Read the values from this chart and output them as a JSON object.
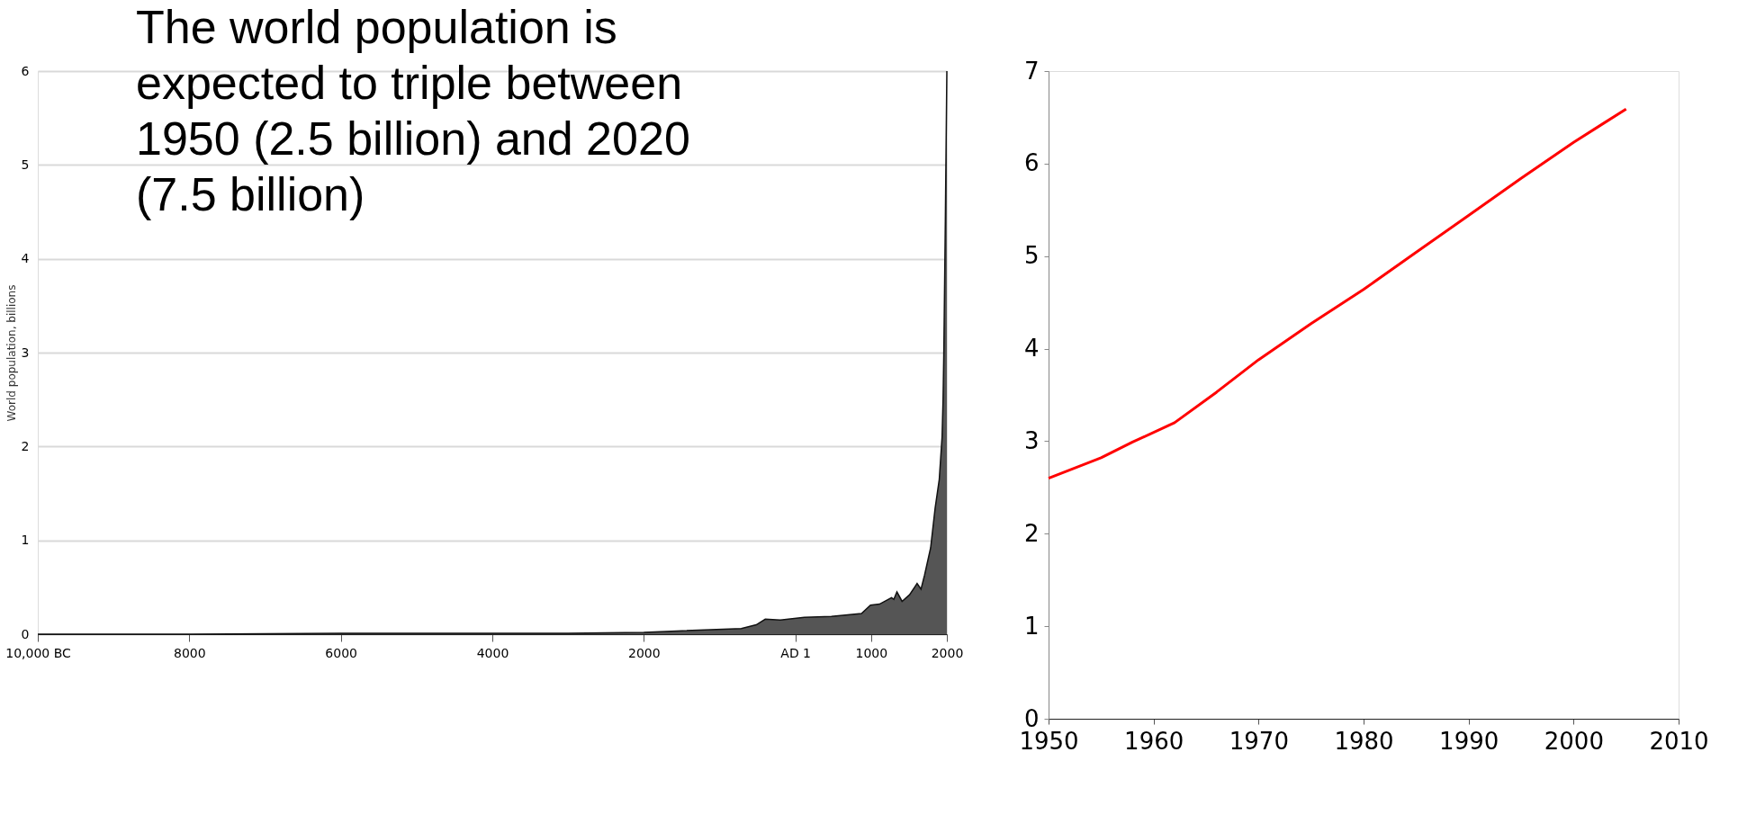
{
  "chart_data": [
    {
      "type": "area",
      "ylabel": "World population, billions",
      "annotations": [
        "The world population is expected to triple between 1950 (2.5 billion) and 2020 (7.5 billion)"
      ],
      "x": [
        -10000,
        -8000,
        -6000,
        -4000,
        -3000,
        -2000,
        -714,
        -516,
        -397,
        -198,
        119,
        476,
        873,
        992,
        1111,
        1270,
        1300,
        1341,
        1409,
        1508,
        1607,
        1659,
        1706,
        1786,
        1845,
        1900,
        1937,
        1950,
        1960,
        1980,
        2000
      ],
      "series": [
        {
          "color": "#555555",
          "values": [
            0,
            0,
            0.01,
            0.01,
            0.01,
            0.02,
            0.06,
            0.1,
            0.16,
            0.15,
            0.18,
            0.19,
            0.22,
            0.31,
            0.32,
            0.39,
            0.37,
            0.45,
            0.35,
            0.42,
            0.54,
            0.48,
            0.63,
            0.92,
            1.34,
            1.65,
            2.1,
            2.5,
            3.0,
            4.4,
            6.0
          ]
        }
      ],
      "xlim": [
        -10000,
        2000
      ],
      "xticks": [
        {
          "value": -10000,
          "label": "10,000 BC"
        },
        {
          "value": -8000,
          "label": "8000"
        },
        {
          "value": -6000,
          "label": "6000"
        },
        {
          "value": -4000,
          "label": "4000"
        },
        {
          "value": -2000,
          "label": "2000"
        },
        {
          "value": 0,
          "label": "AD 1"
        },
        1000,
        2000
      ],
      "ylim": [
        0,
        6
      ],
      "yticks": [
        0,
        1,
        2,
        3,
        4,
        5,
        6
      ],
      "grid": "y"
    },
    {
      "type": "line",
      "x": [
        1950,
        1955,
        1958,
        1962,
        1966,
        1970,
        1975,
        1980,
        1985,
        1990,
        1995,
        2000,
        2005
      ],
      "series": [
        {
          "color": "#ff0000",
          "values": [
            2.6,
            2.82,
            2.99,
            3.2,
            3.53,
            3.88,
            4.27,
            4.64,
            5.04,
            5.44,
            5.84,
            6.23,
            6.59
          ]
        }
      ],
      "xlim": [
        1950,
        2010
      ],
      "xticks": [
        1950,
        1960,
        1970,
        1980,
        1990,
        2000,
        2010
      ],
      "ylim": [
        0,
        7
      ],
      "yticks": [
        0,
        1,
        2,
        3,
        4,
        5,
        6,
        7
      ],
      "grid": false
    }
  ]
}
